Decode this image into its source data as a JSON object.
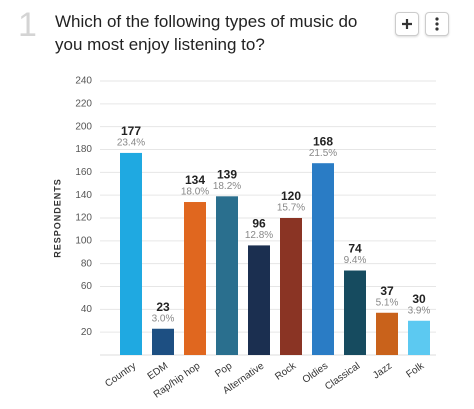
{
  "question_number": 1,
  "chart_data": {
    "type": "bar",
    "title": "Which of the following types of music do you most enjoy listening to?",
    "y_label": "RESPONDENTS",
    "categories": [
      "Country",
      "EDM",
      "Rap/hip hop",
      "Pop",
      "Alternative",
      "Rock",
      "Oldies",
      "Classical",
      "Jazz",
      "Folk"
    ],
    "values": [
      177,
      23,
      134,
      139,
      96,
      120,
      168,
      74,
      37,
      30
    ],
    "percent_labels": [
      "23.4%",
      "3.0%",
      "18.0%",
      "18.2%",
      "12.8%",
      "15.7%",
      "21.5%",
      "9.4%",
      "5.1%",
      "3.9%"
    ],
    "colors": [
      "#1fa9e1",
      "#1d4f82",
      "#e0671f",
      "#2a6f8e",
      "#1b2f50",
      "#8a3424",
      "#2a7cc5",
      "#164b5f",
      "#c9621b",
      "#5cc9f1"
    ],
    "ylim": [
      0,
      240
    ],
    "yticks": [
      20,
      40,
      60,
      80,
      100,
      120,
      140,
      160,
      180,
      200,
      220,
      240
    ],
    "grid": true
  }
}
